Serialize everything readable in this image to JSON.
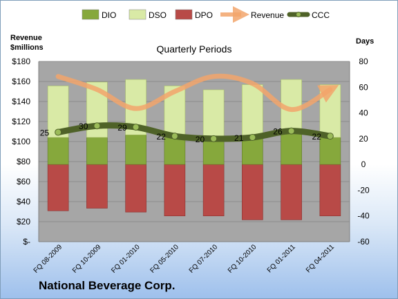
{
  "chart_data": {
    "type": "bar",
    "title": "Quarterly Periods",
    "company": "National Beverage Corp.",
    "left_axis_label_line1": "Revenue",
    "left_axis_label_line2": "$millions",
    "right_axis_label": "Days",
    "left_ylim": [
      0,
      180
    ],
    "left_ticks": [
      "$-",
      "$20",
      "$40",
      "$60",
      "$80",
      "$100",
      "$120",
      "$140",
      "$160",
      "$180"
    ],
    "right_ylim": [
      -60,
      80
    ],
    "right_ticks": [
      "-60",
      "-40",
      "-20",
      "0",
      "20",
      "40",
      "60",
      "80"
    ],
    "categories": [
      "FQ 08-2009",
      "FQ 10-2009",
      "FQ 01-2010",
      "FQ 05-2010",
      "FQ 07-2010",
      "FQ 10-2010",
      "FQ 01-2011",
      "FQ 04-2011"
    ],
    "legend": [
      "DIO",
      "DSO",
      "DPO",
      "Revenue",
      "CCC"
    ],
    "legend_position": "top",
    "grid": true,
    "series": [
      {
        "name": "DIO",
        "axis": "right",
        "color": "#86a83c",
        "values": [
          21,
          21,
          23,
          21,
          18,
          21,
          24,
          21
        ]
      },
      {
        "name": "DSO",
        "axis": "right",
        "color": "#d9eaa6",
        "values": [
          40,
          43,
          43,
          40,
          40,
          41,
          42,
          41
        ]
      },
      {
        "name": "DPO",
        "axis": "right",
        "color": "#b84a47",
        "values": [
          -36,
          -34,
          -37,
          -40,
          -40,
          -43,
          -43,
          -40
        ]
      },
      {
        "name": "Revenue",
        "axis": "left",
        "color": "#f2a56b",
        "values": [
          165,
          152,
          133,
          150,
          165,
          158,
          132,
          152
        ]
      },
      {
        "name": "CCC",
        "axis": "right",
        "color": "#4f6228",
        "values": [
          25,
          30,
          29,
          22,
          20,
          21,
          26,
          22
        ]
      }
    ]
  }
}
